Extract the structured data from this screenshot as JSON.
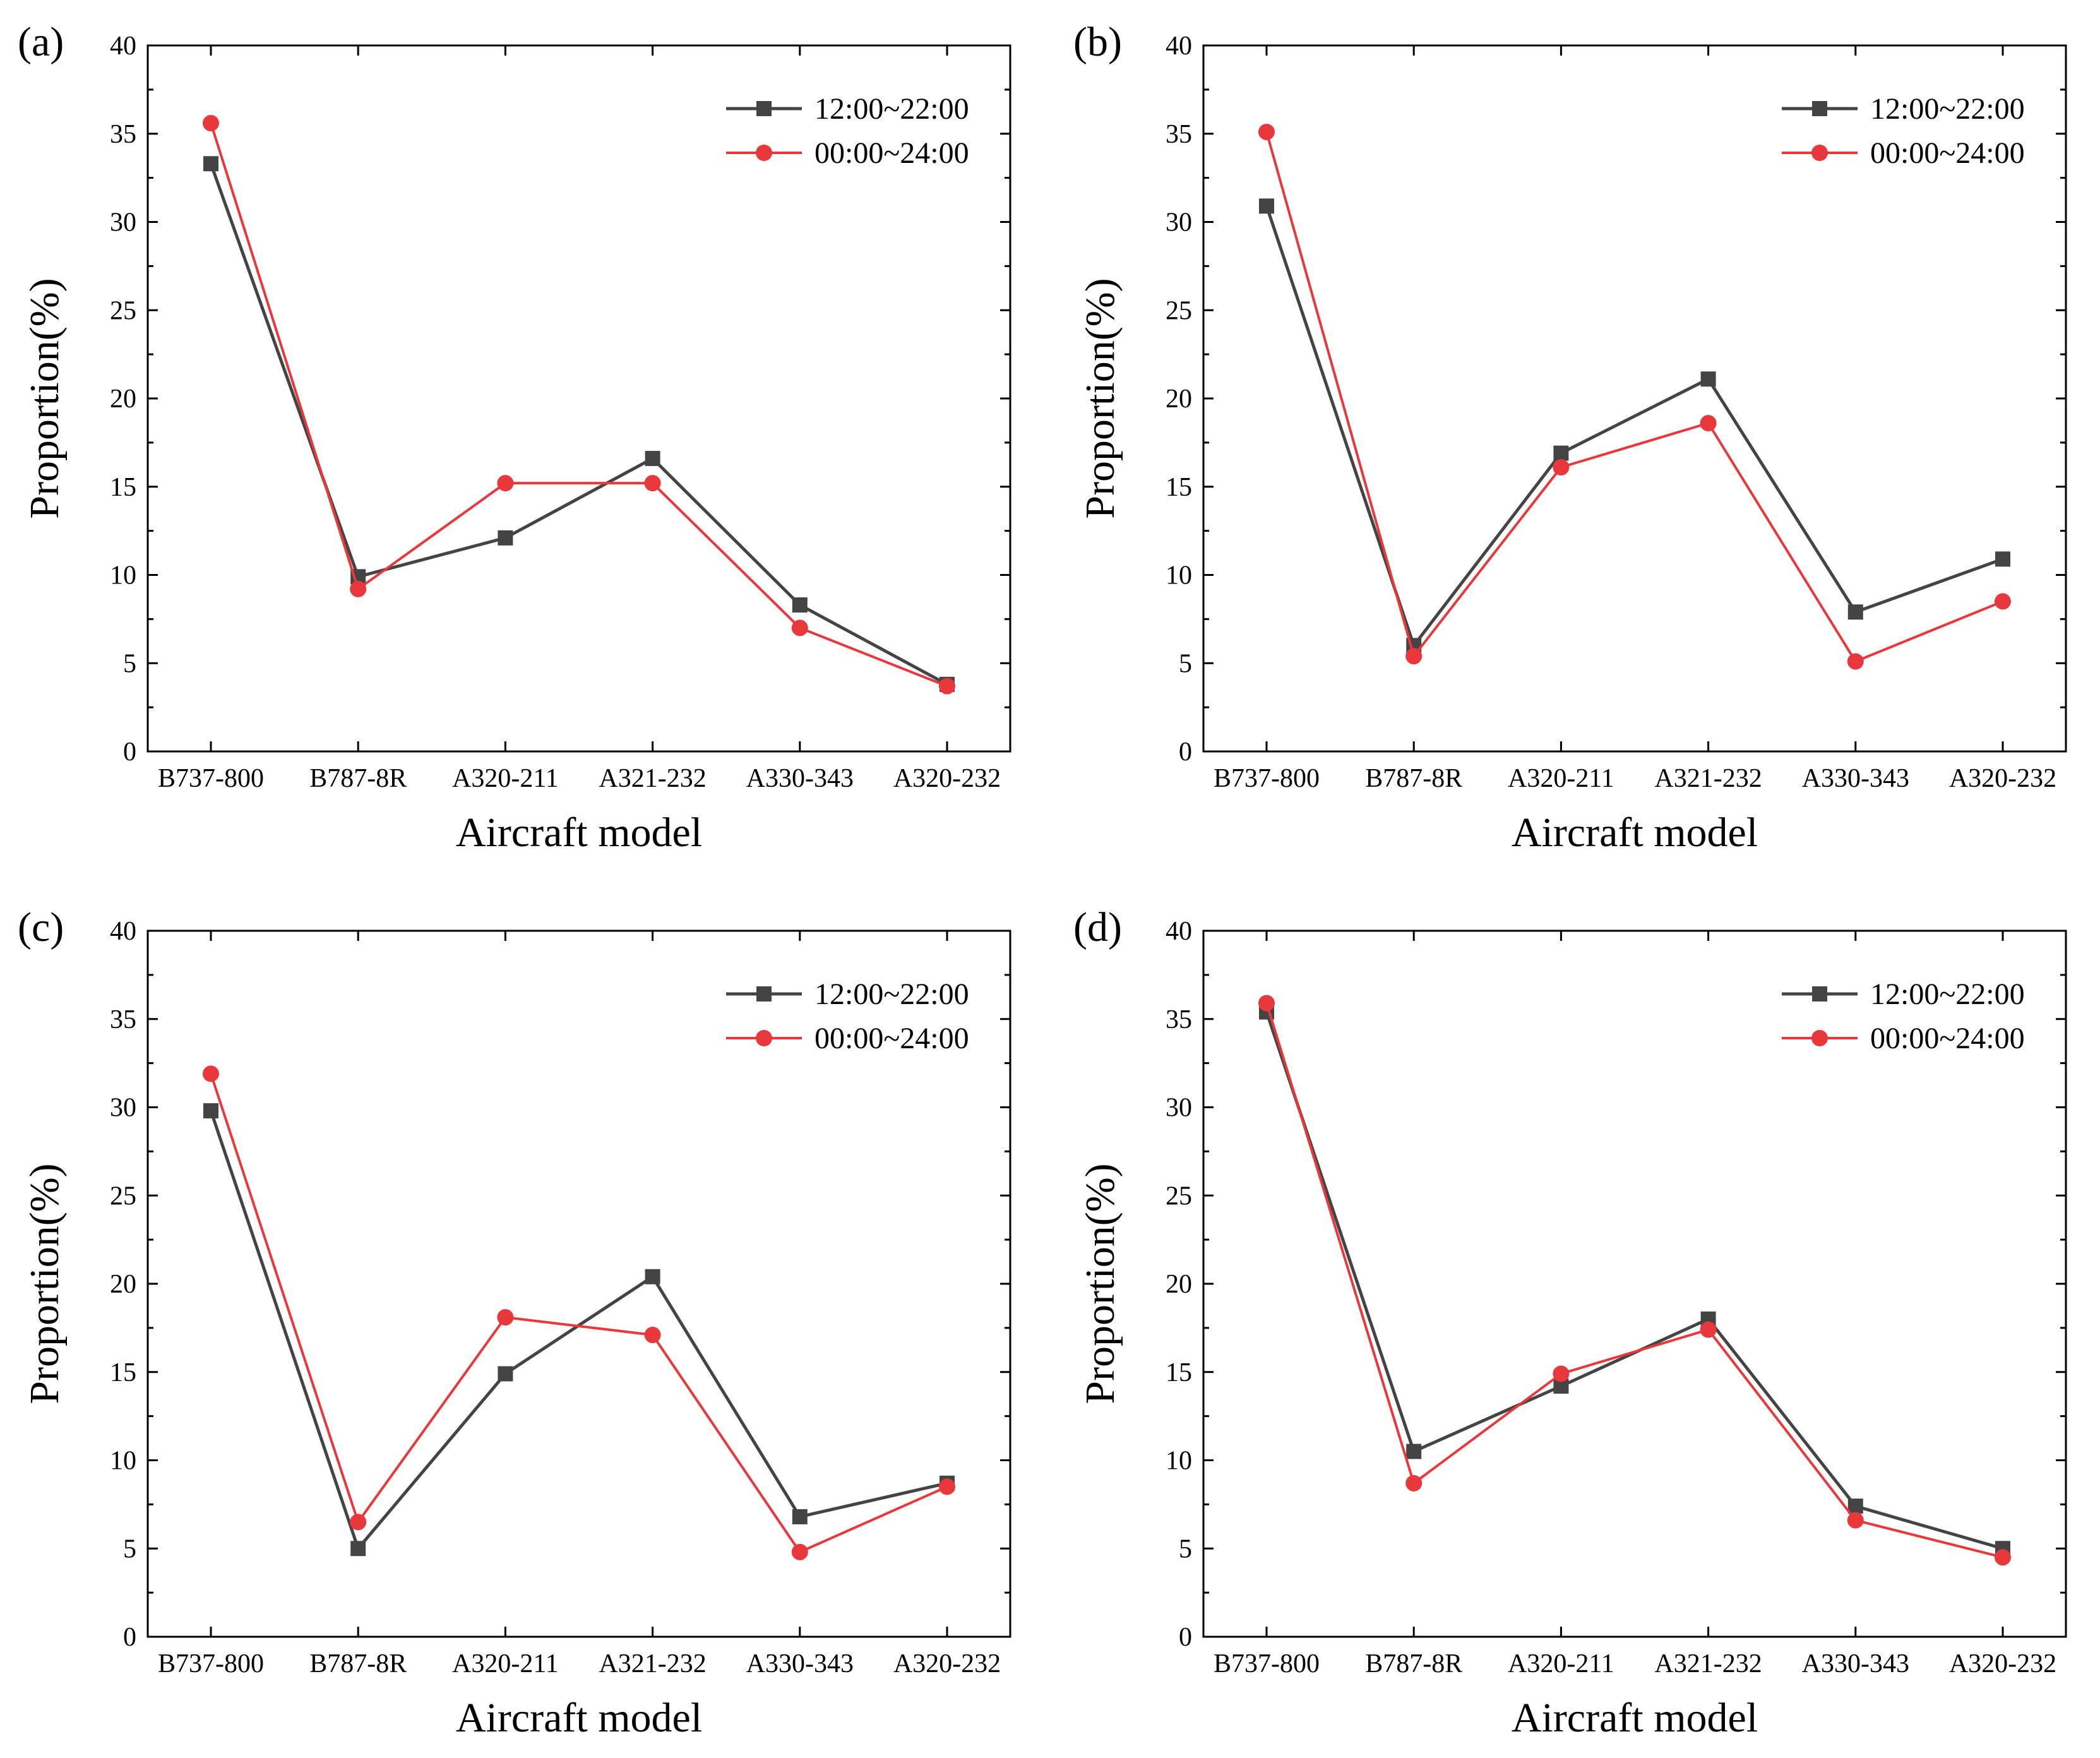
{
  "chart_data": [
    {
      "type": "line",
      "panel_label": "(a)",
      "categories": [
        "B737-800",
        "B787-8R",
        "A320-211",
        "A321-232",
        "A330-343",
        "A320-232"
      ],
      "series": [
        {
          "name": "12:00~22:00",
          "color": "#444444",
          "marker": "square",
          "values": [
            33.3,
            9.9,
            12.1,
            16.6,
            8.3,
            3.8
          ]
        },
        {
          "name": "00:00~24:00",
          "color": "#e8383c",
          "marker": "circle",
          "values": [
            35.6,
            9.2,
            15.2,
            15.2,
            7.0,
            3.7
          ]
        }
      ],
      "xlabel": "Aircraft model",
      "ylabel": "Proportion(%)",
      "ylim": [
        0,
        40
      ],
      "yticks": [
        0,
        5,
        10,
        15,
        20,
        25,
        30,
        35,
        40
      ],
      "legend": "top-right",
      "grid": false
    },
    {
      "type": "line",
      "panel_label": "(b)",
      "categories": [
        "B737-800",
        "B787-8R",
        "A320-211",
        "A321-232",
        "A330-343",
        "A320-232"
      ],
      "series": [
        {
          "name": "12:00~22:00",
          "color": "#444444",
          "marker": "square",
          "values": [
            30.9,
            6.0,
            16.9,
            21.1,
            7.9,
            10.9
          ]
        },
        {
          "name": "00:00~24:00",
          "color": "#e8383c",
          "marker": "circle",
          "values": [
            35.1,
            5.4,
            16.1,
            18.6,
            5.1,
            8.5
          ]
        }
      ],
      "xlabel": "Aircraft model",
      "ylabel": "Proportion(%)",
      "ylim": [
        0,
        40
      ],
      "yticks": [
        0,
        5,
        10,
        15,
        20,
        25,
        30,
        35,
        40
      ],
      "legend": "top-right",
      "grid": false
    },
    {
      "type": "line",
      "panel_label": "(c)",
      "categories": [
        "B737-800",
        "B787-8R",
        "A320-211",
        "A321-232",
        "A330-343",
        "A320-232"
      ],
      "series": [
        {
          "name": "12:00~22:00",
          "color": "#444444",
          "marker": "square",
          "values": [
            29.8,
            5.0,
            14.9,
            20.4,
            6.8,
            8.7
          ]
        },
        {
          "name": "00:00~24:00",
          "color": "#e8383c",
          "marker": "circle",
          "values": [
            31.9,
            6.5,
            18.1,
            17.1,
            4.8,
            8.5
          ]
        }
      ],
      "xlabel": "Aircraft model",
      "ylabel": "Proportion(%)",
      "ylim": [
        0,
        40
      ],
      "yticks": [
        0,
        5,
        10,
        15,
        20,
        25,
        30,
        35,
        40
      ],
      "legend": "top-right",
      "grid": false
    },
    {
      "type": "line",
      "panel_label": "(d)",
      "categories": [
        "B737-800",
        "B787-8R",
        "A320-211",
        "A321-232",
        "A330-343",
        "A320-232"
      ],
      "series": [
        {
          "name": "12:00~22:00",
          "color": "#444444",
          "marker": "square",
          "values": [
            35.4,
            10.5,
            14.2,
            18.0,
            7.4,
            5.0
          ]
        },
        {
          "name": "00:00~24:00",
          "color": "#e8383c",
          "marker": "circle",
          "values": [
            35.9,
            8.7,
            14.9,
            17.4,
            6.6,
            4.5
          ]
        }
      ],
      "xlabel": "Aircraft model",
      "ylabel": "Proportion(%)",
      "ylim": [
        0,
        40
      ],
      "yticks": [
        0,
        5,
        10,
        15,
        20,
        25,
        30,
        35,
        40
      ],
      "legend": "top-right",
      "grid": false
    }
  ]
}
